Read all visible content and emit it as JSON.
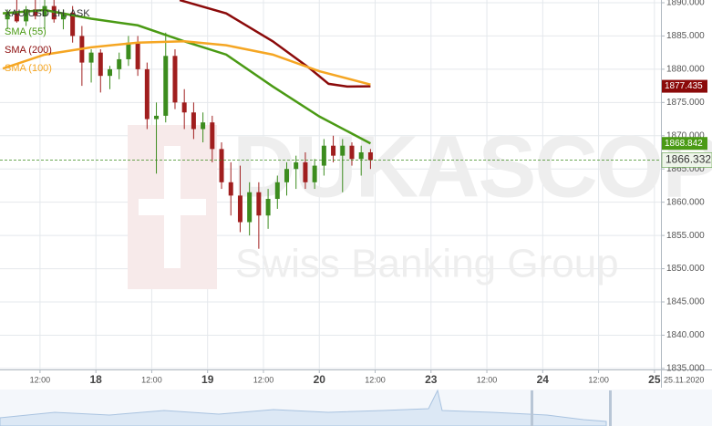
{
  "chart_data": {
    "type": "candlestick",
    "title": "XAU/USD 1H, ASK",
    "watermark": {
      "brand": "DUKASCOPY",
      "tagline": "Swiss Banking Group"
    },
    "date_label": "25.11.2020",
    "x": [
      5,
      7,
      9,
      11,
      13,
      15,
      17,
      19,
      21,
      23,
      25,
      27,
      29,
      31,
      33,
      35,
      37,
      39,
      41,
      43,
      45,
      47,
      49,
      51,
      53,
      55,
      57,
      59,
      61,
      63,
      65,
      67,
      69,
      71,
      73,
      75,
      77,
      79,
      81,
      83
    ],
    "open": [
      1887.5,
      1888.5,
      1887.2,
      1889,
      1888,
      1889.5,
      1887.5,
      1888.5,
      1885,
      1881,
      1882.5,
      1879,
      1880,
      1881.5,
      1884,
      1880,
      1872.5,
      1873,
      1882,
      1875,
      1873.5,
      1871,
      1872,
      1868,
      1863,
      1861,
      1857,
      1861.5,
      1858,
      1860.5,
      1863,
      1865,
      1866,
      1863,
      1865.5,
      1868.5,
      1867,
      1868.5,
      1866.5,
      1867.5
    ],
    "high": [
      1889,
      1890.5,
      1889.5,
      1890.5,
      1890.5,
      1890.5,
      1889,
      1889.5,
      1886.5,
      1883,
      1883,
      1880.5,
      1882.5,
      1885,
      1885,
      1881,
      1875,
      1885.5,
      1883,
      1877,
      1875,
      1873.5,
      1873,
      1869,
      1866,
      1865.5,
      1863,
      1863,
      1862,
      1864,
      1866,
      1867,
      1867.5,
      1866.5,
      1869.5,
      1870,
      1869.5,
      1869,
      1868.5,
      1868
    ],
    "low": [
      1886,
      1887,
      1886.5,
      1887.5,
      1886,
      1887,
      1886,
      1884,
      1877.5,
      1878,
      1876.5,
      1877,
      1878.5,
      1880.5,
      1879,
      1871,
      1864.3,
      1872,
      1874,
      1871,
      1869.5,
      1869,
      1866,
      1862,
      1858,
      1855.5,
      1855,
      1853,
      1856,
      1859,
      1861,
      1862,
      1862,
      1862,
      1864,
      1866,
      1861.5,
      1865.5,
      1864,
      1865
    ],
    "close": [
      1888.5,
      1887.2,
      1889,
      1888,
      1889.5,
      1887.5,
      1888.5,
      1885,
      1881,
      1882.5,
      1879,
      1880,
      1881.5,
      1884,
      1880,
      1872.5,
      1873,
      1882,
      1875,
      1873.5,
      1871,
      1872,
      1868,
      1863,
      1861,
      1857,
      1861.5,
      1858,
      1860.5,
      1863,
      1865,
      1866,
      1863,
      1865.5,
      1868.5,
      1867,
      1868.5,
      1866.5,
      1867.5,
      1866.332
    ],
    "up_color": "#3c8c1e",
    "down_color": "#a01e1e",
    "current_price": 1866.332,
    "series": [
      {
        "name": "SMA (55)",
        "color": "#4a9a14",
        "x": [
          4,
          13,
          23,
          33,
          43,
          52,
          62,
          72,
          83
        ],
        "values": [
          1888.4,
          1888.9,
          1887.6,
          1886.6,
          1884.2,
          1882.2,
          1877.4,
          1872.9,
          1868.842
        ],
        "last_value": 1868.842
      },
      {
        "name": "SMA (200)",
        "color": "#8b0a0a",
        "x": [
          42,
          52,
          62,
          70,
          74,
          78,
          83
        ],
        "values": [
          1890.4,
          1888.4,
          1884.2,
          1880.1,
          1877.8,
          1877.4,
          1877.435
        ],
        "last_value": 1877.435
      },
      {
        "name": "SMA (100)",
        "color": "#f5a623",
        "x": [
          4,
          13,
          23,
          33,
          43,
          52,
          62,
          72,
          83
        ],
        "values": [
          1880.1,
          1882.2,
          1883.3,
          1884,
          1884.2,
          1883.6,
          1882.2,
          1879.7,
          1877.7
        ]
      }
    ],
    "xlim": [
      3.4,
      145.4
    ],
    "xticks": [
      {
        "value": 12,
        "label": "12:00"
      },
      {
        "value": 24,
        "label": "18"
      },
      {
        "value": 36,
        "label": "12:00"
      },
      {
        "value": 48,
        "label": "19"
      },
      {
        "value": 60,
        "label": "12:00"
      },
      {
        "value": 72,
        "label": "20"
      },
      {
        "value": 84,
        "label": "12:00"
      },
      {
        "value": 96,
        "label": "23"
      },
      {
        "value": 108,
        "label": "12:00"
      },
      {
        "value": 120,
        "label": "24"
      },
      {
        "value": 132,
        "label": "12:00"
      },
      {
        "value": 144,
        "label": "25"
      }
    ],
    "ylim": [
      1834.85,
      1890.41
    ],
    "yticks": [
      {
        "value": 1835,
        "label": "1835.000"
      },
      {
        "value": 1840,
        "label": "1840.000"
      },
      {
        "value": 1845,
        "label": "1845.000"
      },
      {
        "value": 1850,
        "label": "1850.000"
      },
      {
        "value": 1855,
        "label": "1855.000"
      },
      {
        "value": 1860,
        "label": "1860.000"
      },
      {
        "value": 1865,
        "label": "1865.000"
      },
      {
        "value": 1870,
        "label": "1870.000"
      },
      {
        "value": 1875,
        "label": "1875.000"
      },
      {
        "value": 1880,
        "label": "1880.000"
      },
      {
        "value": 1885,
        "label": "1885.000"
      },
      {
        "value": 1890,
        "label": "1890.000"
      }
    ],
    "grid": true
  }
}
